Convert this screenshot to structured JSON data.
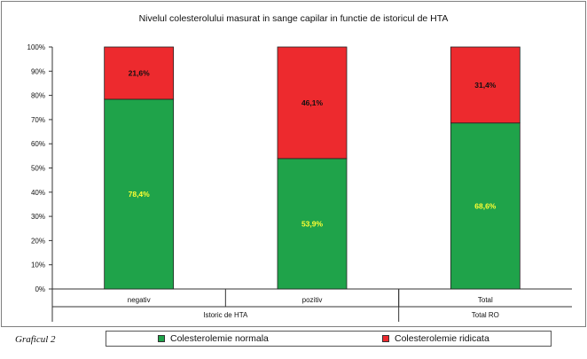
{
  "chart_data": {
    "type": "bar",
    "stacked": true,
    "title": "Nivelul colesterolului masurat in sange capilar in functie de istoricul de HTA",
    "categories": [
      "negativ",
      "pozitiv",
      "Total"
    ],
    "groups": [
      {
        "label": "Istoric de HTA",
        "categories": [
          "negativ",
          "pozitiv"
        ]
      },
      {
        "label": "Total RO",
        "categories": [
          "Total"
        ]
      }
    ],
    "yticks": [
      "0%",
      "10%",
      "20%",
      "30%",
      "40%",
      "50%",
      "60%",
      "70%",
      "80%",
      "90%",
      "100%"
    ],
    "ylim": [
      0,
      100
    ],
    "series": [
      {
        "name": "Colesterolemie normala",
        "color": "#1fa34a",
        "label_color": "#ffff33",
        "values": [
          78.4,
          53.9,
          68.6
        ],
        "labels": [
          "78,4%",
          "53,9%",
          "68,6%"
        ]
      },
      {
        "name": "Colesterolemie ridicata",
        "color": "#ed2a2e",
        "label_color": "#111111",
        "values": [
          21.6,
          46.1,
          31.4
        ],
        "labels": [
          "21,6%",
          "46,1%",
          "31,4%"
        ]
      }
    ],
    "legend_position": "bottom"
  },
  "caption": "Graficul 2"
}
